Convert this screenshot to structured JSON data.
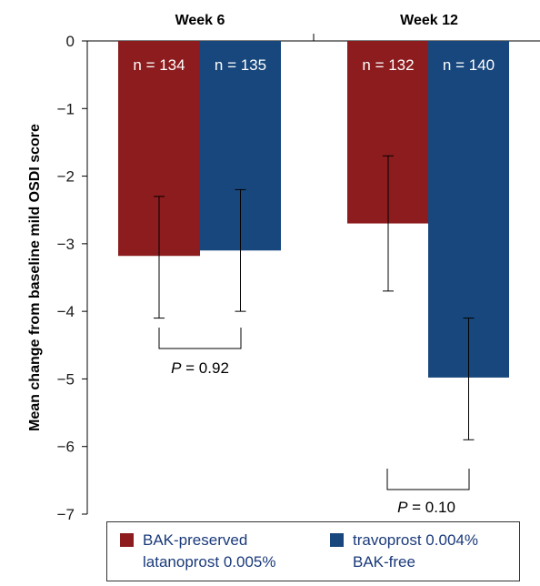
{
  "chart_data": {
    "type": "bar",
    "categories": [
      "Week 6",
      "Week 12"
    ],
    "ylabel": "Mean change from baseline mild OSDI score",
    "ylim": [
      -7,
      0
    ],
    "yticks": [
      0,
      -1,
      -2,
      -3,
      -4,
      -5,
      -6,
      -7
    ],
    "ytick_labels": [
      "0",
      "−1",
      "−2",
      "−3",
      "−4",
      "−5",
      "−6",
      "−7"
    ],
    "series": [
      {
        "name_lines": [
          "BAK-preserved",
          "latanoprost 0.005%"
        ],
        "color": "#8c1c1e",
        "values": [
          -3.18,
          -2.7
        ],
        "err_low": [
          -4.1,
          -3.7
        ],
        "err_high": [
          -2.3,
          -1.7
        ],
        "n_labels": [
          "n = 134",
          "n = 132"
        ]
      },
      {
        "name_lines": [
          "travoprost 0.004%",
          "BAK-free"
        ],
        "color": "#17477c",
        "values": [
          -3.1,
          -4.98
        ],
        "err_low": [
          -4.0,
          -5.9
        ],
        "err_high": [
          -2.2,
          -4.1
        ],
        "n_labels": [
          "n = 135",
          "n = 140"
        ]
      }
    ],
    "comparisons": [
      {
        "category": "Week 6",
        "p_italic": "P",
        "p_rest": " = 0.92"
      },
      {
        "category": "Week 12",
        "p_italic": "P",
        "p_rest": " = 0.10"
      }
    ],
    "legend_position": "bottom"
  }
}
